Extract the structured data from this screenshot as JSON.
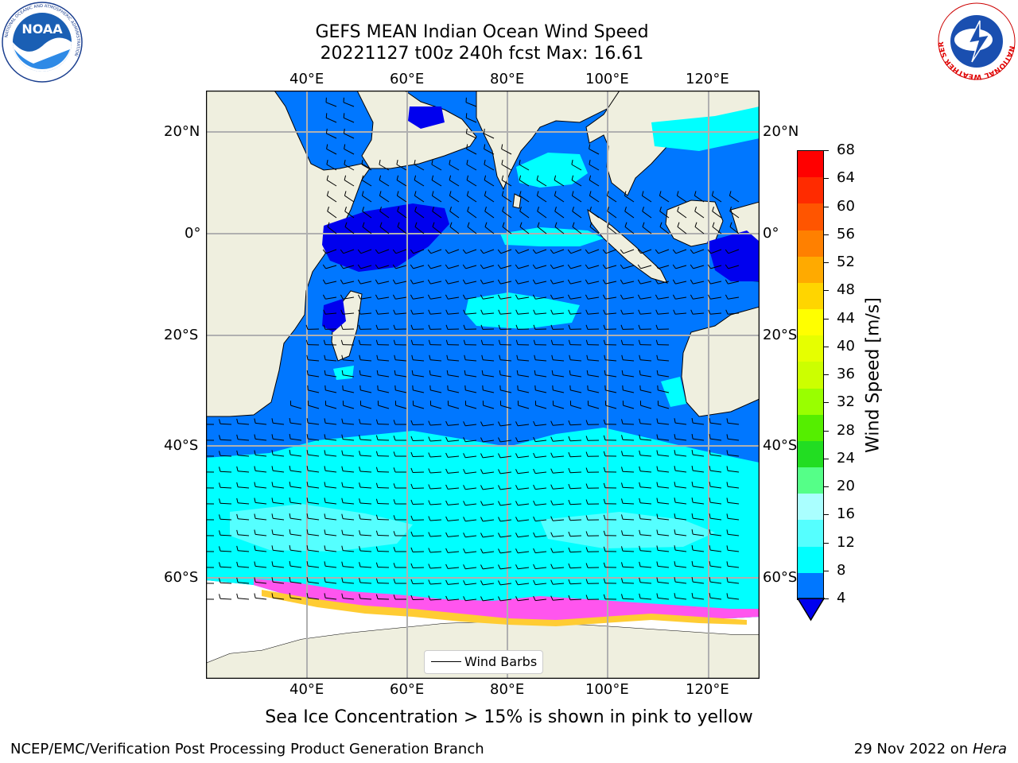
{
  "title": {
    "line1": "GEFS MEAN Indian Ocean Wind Speed",
    "line2": "20221127 t00z 240h fcst   Max: 16.61"
  },
  "map": {
    "lon_ticks_top": [
      "40°E",
      "60°E",
      "80°E",
      "100°E",
      "120°E"
    ],
    "lon_ticks_bottom": [
      "40°E",
      "60°E",
      "80°E",
      "100°E",
      "120°E"
    ],
    "lat_ticks_left": [
      "20°N",
      "0°",
      "20°S",
      "40°S",
      "60°S"
    ],
    "lat_ticks_right": [
      "20°N",
      "0°",
      "20°S",
      "40°S",
      "60°S"
    ],
    "legend_label": "Wind Barbs"
  },
  "colorbar": {
    "label": "Wind Speed [m/s]",
    "ticks": [
      "68",
      "64",
      "60",
      "56",
      "52",
      "48",
      "44",
      "40",
      "36",
      "32",
      "28",
      "24",
      "20",
      "16",
      "12",
      "8",
      "4"
    ],
    "colors": [
      "#ff0000",
      "#ff2b00",
      "#ff5500",
      "#ff8000",
      "#ffaa00",
      "#ffd500",
      "#ffff00",
      "#e6ff00",
      "#ccff00",
      "#99ff00",
      "#55ee00",
      "#22dd22",
      "#55ff88",
      "#aaffff",
      "#55ffff",
      "#00ffff",
      "#0077ff"
    ],
    "extend_color": "#0000ee"
  },
  "caption": "Sea Ice Concentration > 15% is shown in pink to yellow",
  "footer": {
    "left": "NCEP/EMC/Verification Post Processing Product Generation Branch",
    "right_date": "29 Nov 2022 on ",
    "right_machine": "Hera"
  },
  "logos": {
    "noaa_text": "NOAA",
    "noaa_ring": "NATIONAL OCEANIC AND ATMOSPHERIC ADMINISTRATION",
    "noaa_bottom": "U.S. DEPARTMENT OF COMMERCE",
    "nws_ring": "NATIONAL WEATHER SERVICE"
  },
  "colors": {
    "land": "#efefdf",
    "ocean_low": "#0077ff",
    "ocean_mid": "#00ffff",
    "ocean_strong": "#55ffff",
    "ocean_calm": "#0000ee",
    "ice_pink": "#ff55ee",
    "ice_yellow": "#ffcc33"
  }
}
